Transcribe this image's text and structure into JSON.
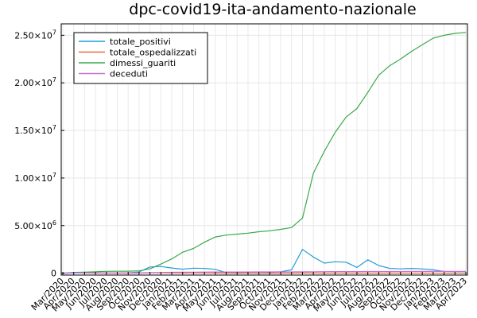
{
  "chart_data": {
    "type": "line",
    "title": "dpc-covid19-ita-andamento-nazionale",
    "xlabel": "",
    "ylabel": "",
    "grid": true,
    "legend_position": "top-left",
    "ylim": [
      -200000,
      26200000
    ],
    "y_ticks": [
      {
        "value": 0,
        "label": "0"
      },
      {
        "value": 5000000,
        "mantissa": "5.00",
        "exp": "6"
      },
      {
        "value": 10000000,
        "mantissa": "1.00",
        "exp": "7"
      },
      {
        "value": 15000000,
        "mantissa": "1.50",
        "exp": "7"
      },
      {
        "value": 20000000,
        "mantissa": "2.00",
        "exp": "7"
      },
      {
        "value": 25000000,
        "mantissa": "2.50",
        "exp": "7"
      }
    ],
    "x_ticks": [
      "Mar/2020",
      "Apr/2020",
      "May/2020",
      "Jun/2020",
      "Jul/2020",
      "Aug/2020",
      "Sep/2020",
      "Oct/2020",
      "Nov/2020",
      "Dec/2020",
      "Jan/2021",
      "Feb/2021",
      "Mar/2021",
      "Apr/2021",
      "May/2021",
      "Jun/2021",
      "Jul/2021",
      "Aug/2021",
      "Sep/2021",
      "Oct/2021",
      "Nov/2021",
      "Dec/2021",
      "Jan/2022",
      "Feb/2022",
      "Mar/2022",
      "Apr/2022",
      "May/2022",
      "Jun/2022",
      "Jul/2022",
      "Aug/2022",
      "Sep/2022",
      "Oct/2022",
      "Nov/2022",
      "Dec/2022",
      "Jan/2023",
      "Feb/2023",
      "Mar/2023",
      "Apr/2023"
    ],
    "x": [
      "Mar/2020",
      "Apr/2020",
      "May/2020",
      "Jun/2020",
      "Jul/2020",
      "Aug/2020",
      "Sep/2020",
      "Oct/2020",
      "Nov/2020",
      "Dec/2020",
      "Jan/2021",
      "Feb/2021",
      "Mar/2021",
      "Apr/2021",
      "May/2021",
      "Jun/2021",
      "Jul/2021",
      "Aug/2021",
      "Sep/2021",
      "Oct/2021",
      "Nov/2021",
      "Dec/2021",
      "Jan/2022",
      "Feb/2022",
      "Mar/2022",
      "Apr/2022",
      "May/2022",
      "Jun/2022",
      "Jul/2022",
      "Aug/2022",
      "Sep/2022",
      "Oct/2022",
      "Nov/2022",
      "Dec/2022",
      "Jan/2023",
      "Feb/2023",
      "Mar/2023",
      "Apr/2023"
    ],
    "series": [
      {
        "name": "totale_positivi",
        "color": "#1f9ed8",
        "values": [
          2000,
          80000,
          100000,
          40000,
          14000,
          12000,
          30000,
          130000,
          650000,
          700000,
          540000,
          420000,
          530000,
          500000,
          400000,
          60000,
          50000,
          130000,
          120000,
          100000,
          140000,
          350000,
          2500000,
          1700000,
          1050000,
          1200000,
          1150000,
          600000,
          1400000,
          800000,
          500000,
          450000,
          500000,
          450000,
          350000,
          180000,
          160000,
          160000
        ]
      },
      {
        "name": "totale_ospedalizzati",
        "color": "#e26a44",
        "values": [
          1000,
          30000,
          20000,
          8000,
          1500,
          1000,
          2500,
          9000,
          35000,
          30000,
          24000,
          20000,
          28000,
          25000,
          15000,
          5000,
          2500,
          5000,
          4500,
          3500,
          5500,
          12000,
          20000,
          17000,
          10000,
          10000,
          8500,
          5000,
          11000,
          8000,
          5000,
          6500,
          7000,
          7000,
          5500,
          4000,
          3500,
          3000
        ]
      },
      {
        "name": "dimessi_guariti",
        "color": "#3ba84b",
        "values": [
          0,
          20000,
          100000,
          150000,
          190000,
          200000,
          210000,
          240000,
          450000,
          950000,
          1500000,
          2200000,
          2600000,
          3250000,
          3800000,
          4000000,
          4100000,
          4200000,
          4350000,
          4450000,
          4600000,
          4800000,
          5800000,
          10500000,
          12800000,
          14800000,
          16400000,
          17300000,
          19000000,
          20800000,
          21800000,
          22500000,
          23300000,
          24000000,
          24700000,
          25000000,
          25200000,
          25300000
        ]
      },
      {
        "name": "deceduti",
        "color": "#c872d6",
        "values": [
          100,
          15000,
          30000,
          34000,
          35000,
          35500,
          36000,
          38000,
          55000,
          75000,
          90000,
          98000,
          110000,
          120000,
          125000,
          127000,
          128000,
          130000,
          131000,
          132000,
          133000,
          137000,
          145000,
          155000,
          160000,
          165000,
          167000,
          168000,
          172000,
          175000,
          177000,
          179000,
          181000,
          183000,
          185000,
          187000,
          188000,
          189000
        ]
      }
    ]
  }
}
